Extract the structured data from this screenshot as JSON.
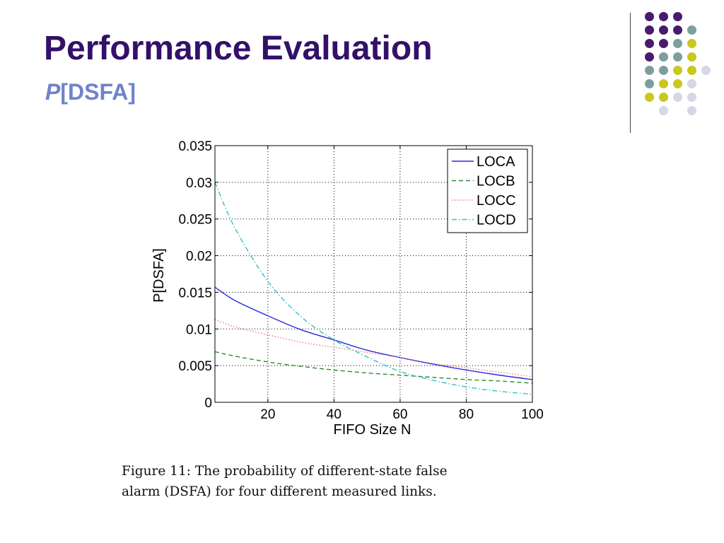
{
  "slide": {
    "title": "Performance Evaluation",
    "subtitle_italic": "P",
    "subtitle_rest": "[DSFA]"
  },
  "caption": {
    "line1": "Figure 11:  The probability of different-state false",
    "line2": "alarm (DSFA) for four different measured links."
  },
  "decoration": {
    "colors": [
      "#4a1a6e",
      "#7d9e9e",
      "#c8c81e",
      "#d6d6e6"
    ]
  },
  "chart_data": {
    "type": "line",
    "title": "",
    "xlabel": "FIFO Size N",
    "ylabel": "P[DSFA]",
    "xlim": [
      4,
      100
    ],
    "ylim": [
      0,
      0.035
    ],
    "xticks": [
      "20",
      "40",
      "60",
      "80",
      "100"
    ],
    "yticks": [
      "0",
      "0.005",
      "0.01",
      "0.015",
      "0.02",
      "0.025",
      "0.03",
      "0.035"
    ],
    "grid": true,
    "legend_position": "top-right",
    "x": [
      4,
      10,
      20,
      30,
      40,
      50,
      60,
      70,
      80,
      90,
      100
    ],
    "series": [
      {
        "name": "LOCA",
        "color": "#2a2ae0",
        "style": "solid",
        "values": [
          0.0157,
          0.0139,
          0.0118,
          0.0099,
          0.0085,
          0.0071,
          0.0061,
          0.0052,
          0.0044,
          0.0037,
          0.0031
        ]
      },
      {
        "name": "LOCB",
        "color": "#2e8b2e",
        "style": "dashed",
        "values": [
          0.0069,
          0.0063,
          0.0055,
          0.0049,
          0.0044,
          0.004,
          0.0037,
          0.0034,
          0.0031,
          0.0029,
          0.0026
        ]
      },
      {
        "name": "LOCC",
        "color": "#f08080",
        "style": "dotted",
        "values": [
          0.0113,
          0.0103,
          0.0092,
          0.0082,
          0.0075,
          0.0068,
          0.0061,
          0.0053,
          0.0047,
          0.0041,
          0.0035
        ]
      },
      {
        "name": "LOCD",
        "color": "#2ec4c4",
        "style": "dashdot",
        "values": [
          0.03,
          0.0238,
          0.0165,
          0.0117,
          0.0085,
          0.0062,
          0.0042,
          0.003,
          0.0021,
          0.0015,
          0.0011
        ]
      }
    ]
  }
}
